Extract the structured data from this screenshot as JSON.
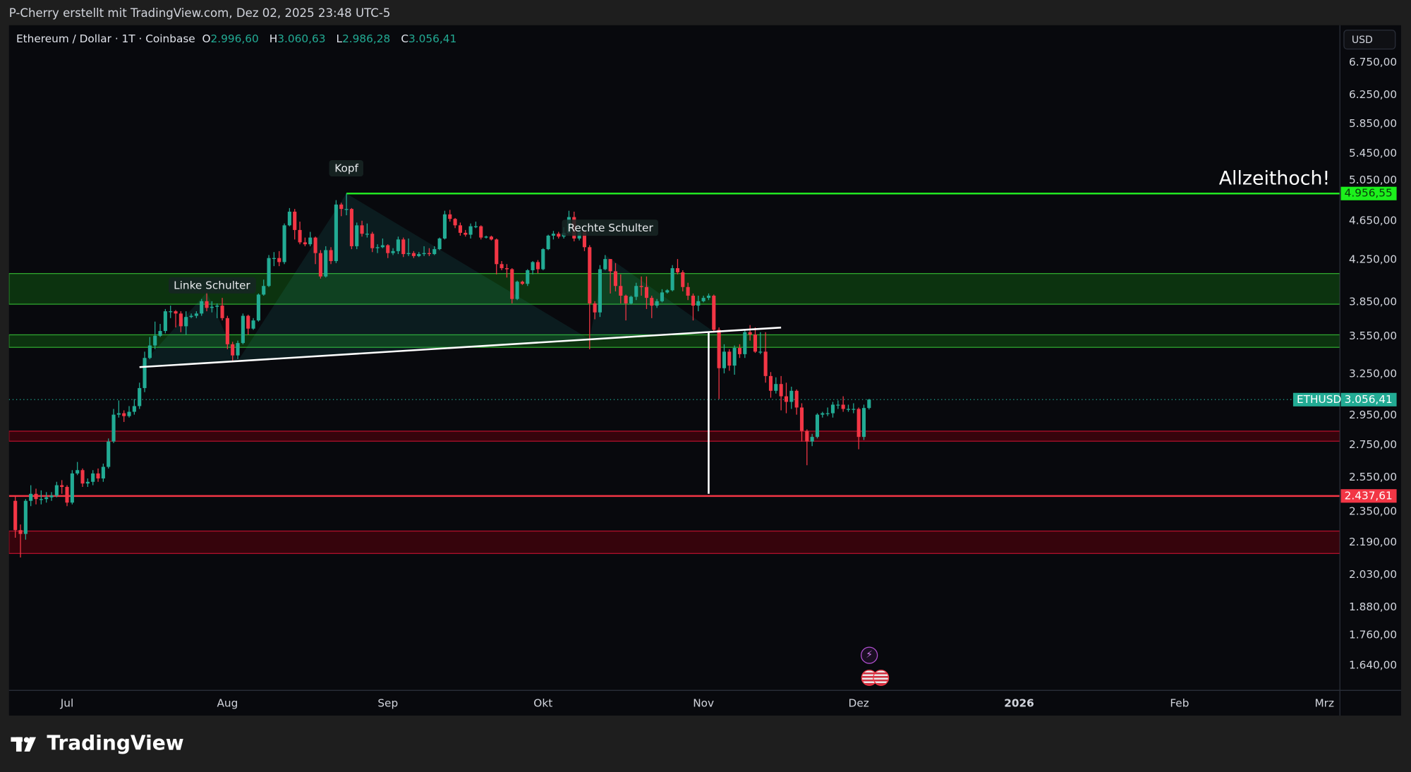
{
  "header": {
    "credit": "P-Cherry erstellt mit TradingView.com, Dez 02, 2025 23:48 UTC-5"
  },
  "legend": {
    "symbol": "Ethereum / Dollar · 1T · Coinbase",
    "o_label": "O",
    "o": "2.996,60",
    "h_label": "H",
    "h": "3.060,63",
    "l_label": "L",
    "l": "2.986,28",
    "c_label": "C",
    "c": "3.056,41"
  },
  "price_axis": {
    "currency_button": "USD"
  },
  "brand": {
    "name": "TradingView"
  },
  "colors": {
    "up": "#22ab94",
    "down": "#f23645",
    "ath_line": "#22e622",
    "support_line": "#f23645",
    "green_zone": "#1f8a1f",
    "red_zone": "#b2102c",
    "background": "#08090d"
  },
  "chart_data": {
    "type": "candlestick",
    "scale": "log",
    "grid": false,
    "ylim": [
      1560,
      7100
    ],
    "y_ticks": [
      {
        "value": 6750,
        "label": "6.750,00"
      },
      {
        "value": 6250,
        "label": "6.250,00"
      },
      {
        "value": 5850,
        "label": "5.850,00"
      },
      {
        "value": 5450,
        "label": "5.450,00"
      },
      {
        "value": 5050,
        "label": "5.050,00"
      },
      {
        "value": 4650,
        "label": "4.650,00"
      },
      {
        "value": 4250,
        "label": "4.250,00"
      },
      {
        "value": 3850,
        "label": "3.850,00"
      },
      {
        "value": 3550,
        "label": "3.550,00"
      },
      {
        "value": 3250,
        "label": "3.250,00"
      },
      {
        "value": 2950,
        "label": "2.950,00"
      },
      {
        "value": 2750,
        "label": "2.750,00"
      },
      {
        "value": 2550,
        "label": "2.550,00"
      },
      {
        "value": 2350,
        "label": "2.350,00"
      },
      {
        "value": 2190,
        "label": "2.190,00"
      },
      {
        "value": 2030,
        "label": "2.030,00"
      },
      {
        "value": 1880,
        "label": "1.880,00"
      },
      {
        "value": 1760,
        "label": "1.760,00"
      },
      {
        "value": 1640,
        "label": "1.640,00"
      }
    ],
    "x_ticks": [
      {
        "date": "2025-07-01",
        "label": "Jul"
      },
      {
        "date": "2025-08-01",
        "label": "Aug"
      },
      {
        "date": "2025-09-01",
        "label": "Sep"
      },
      {
        "date": "2025-10-01",
        "label": "Okt"
      },
      {
        "date": "2025-11-01",
        "label": "Nov"
      },
      {
        "date": "2025-12-01",
        "label": "Dez"
      },
      {
        "date": "2026-01-01",
        "label": "2026",
        "bold": true
      },
      {
        "date": "2026-02-01",
        "label": "Feb"
      },
      {
        "date": "2026-03-01",
        "label": "Mrz"
      }
    ],
    "last_price": {
      "value": 3056.41,
      "label": "3.056,41",
      "symbol": "ETHUSD"
    },
    "levels": [
      {
        "value": 4956.55,
        "label": "4.956,55",
        "color": "#22e622",
        "from_date": "2025-08-24",
        "text": "Allzeithoch!"
      },
      {
        "value": 2437.61,
        "label": "2.437,61",
        "color": "#f23645"
      }
    ],
    "zones": [
      {
        "low": 3823,
        "high": 4108,
        "kind": "green"
      },
      {
        "low": 3455,
        "high": 3558,
        "kind": "green"
      },
      {
        "low": 2772,
        "high": 2838,
        "kind": "red"
      },
      {
        "low": 2130,
        "high": 2245,
        "kind": "red"
      }
    ],
    "pattern_labels": [
      {
        "text": "Linke Schulter",
        "date": "2025-07-29",
        "price": 4000
      },
      {
        "text": "Kopf",
        "date": "2025-08-24",
        "price": 5260
      },
      {
        "text": "Rechte Schulter",
        "date": "2025-10-14",
        "price": 4570
      }
    ],
    "candles": {
      "start_date": "2025-06-21",
      "columns": [
        "open",
        "high",
        "low",
        "close"
      ],
      "ohlc": [
        [
          2410,
          2440,
          2210,
          2250
        ],
        [
          2250,
          2280,
          2110,
          2230
        ],
        [
          2230,
          2420,
          2200,
          2410
        ],
        [
          2410,
          2500,
          2380,
          2450
        ],
        [
          2450,
          2480,
          2390,
          2420
        ],
        [
          2420,
          2470,
          2390,
          2420
        ],
        [
          2420,
          2460,
          2400,
          2430
        ],
        [
          2430,
          2460,
          2410,
          2440
        ],
        [
          2440,
          2520,
          2430,
          2500
        ],
        [
          2500,
          2530,
          2450,
          2490
        ],
        [
          2490,
          2500,
          2380,
          2400
        ],
        [
          2400,
          2590,
          2390,
          2570
        ],
        [
          2570,
          2640,
          2560,
          2590
        ],
        [
          2590,
          2600,
          2490,
          2510
        ],
        [
          2510,
          2540,
          2490,
          2520
        ],
        [
          2520,
          2590,
          2500,
          2570
        ],
        [
          2570,
          2600,
          2520,
          2540
        ],
        [
          2540,
          2630,
          2520,
          2610
        ],
        [
          2610,
          2790,
          2600,
          2770
        ],
        [
          2770,
          2990,
          2760,
          2950
        ],
        [
          2950,
          3050,
          2930,
          2960
        ],
        [
          2960,
          2980,
          2900,
          2940
        ],
        [
          2940,
          3010,
          2930,
          2970
        ],
        [
          2970,
          3060,
          2950,
          3010
        ],
        [
          3010,
          3180,
          2990,
          3140
        ],
        [
          3140,
          3420,
          3110,
          3370
        ],
        [
          3370,
          3540,
          3360,
          3470
        ],
        [
          3470,
          3670,
          3440,
          3550
        ],
        [
          3550,
          3650,
          3540,
          3590
        ],
        [
          3590,
          3780,
          3570,
          3760
        ],
        [
          3760,
          3810,
          3700,
          3760
        ],
        [
          3760,
          3770,
          3620,
          3740
        ],
        [
          3740,
          3760,
          3580,
          3630
        ],
        [
          3630,
          3760,
          3560,
          3710
        ],
        [
          3710,
          3740,
          3700,
          3720
        ],
        [
          3720,
          3760,
          3700,
          3740
        ],
        [
          3740,
          3870,
          3720,
          3850
        ],
        [
          3850,
          3930,
          3760,
          3790
        ],
        [
          3790,
          3850,
          3750,
          3800
        ],
        [
          3800,
          3830,
          3700,
          3810
        ],
        [
          3810,
          3880,
          3680,
          3700
        ],
        [
          3700,
          3720,
          3440,
          3480
        ],
        [
          3480,
          3500,
          3350,
          3390
        ],
        [
          3390,
          3510,
          3360,
          3490
        ],
        [
          3490,
          3740,
          3480,
          3720
        ],
        [
          3720,
          3730,
          3560,
          3610
        ],
        [
          3610,
          3700,
          3600,
          3680
        ],
        [
          3680,
          3920,
          3670,
          3910
        ],
        [
          3910,
          4050,
          3900,
          3990
        ],
        [
          3990,
          4290,
          3980,
          4260
        ],
        [
          4260,
          4320,
          4180,
          4260
        ],
        [
          4260,
          4330,
          4180,
          4220
        ],
        [
          4220,
          4620,
          4200,
          4600
        ],
        [
          4600,
          4790,
          4590,
          4750
        ],
        [
          4750,
          4780,
          4450,
          4550
        ],
        [
          4550,
          4640,
          4400,
          4420
        ],
        [
          4420,
          4470,
          4380,
          4400
        ],
        [
          4400,
          4530,
          4380,
          4470
        ],
        [
          4470,
          4480,
          4200,
          4310
        ],
        [
          4310,
          4340,
          4060,
          4080
        ],
        [
          4080,
          4380,
          4070,
          4340
        ],
        [
          4340,
          4370,
          4200,
          4230
        ],
        [
          4230,
          4880,
          4210,
          4830
        ],
        [
          4830,
          4850,
          4700,
          4780
        ],
        [
          4780,
          4956.55,
          4710,
          4780
        ],
        [
          4780,
          4790,
          4350,
          4380
        ],
        [
          4380,
          4630,
          4350,
          4600
        ],
        [
          4600,
          4650,
          4480,
          4510
        ],
        [
          4510,
          4620,
          4470,
          4510
        ],
        [
          4510,
          4530,
          4320,
          4360
        ],
        [
          4360,
          4400,
          4310,
          4370
        ],
        [
          4370,
          4460,
          4360,
          4390
        ],
        [
          4390,
          4400,
          4260,
          4310
        ],
        [
          4310,
          4360,
          4290,
          4330
        ],
        [
          4330,
          4480,
          4300,
          4450
        ],
        [
          4450,
          4470,
          4270,
          4300
        ],
        [
          4300,
          4460,
          4280,
          4310
        ],
        [
          4310,
          4330,
          4260,
          4280
        ],
        [
          4280,
          4320,
          4270,
          4300
        ],
        [
          4300,
          4380,
          4280,
          4310
        ],
        [
          4310,
          4360,
          4280,
          4300
        ],
        [
          4300,
          4380,
          4290,
          4350
        ],
        [
          4350,
          4470,
          4340,
          4460
        ],
        [
          4460,
          4760,
          4450,
          4720
        ],
        [
          4720,
          4770,
          4640,
          4670
        ],
        [
          4670,
          4680,
          4570,
          4600
        ],
        [
          4600,
          4630,
          4490,
          4520
        ],
        [
          4520,
          4550,
          4480,
          4500
        ],
        [
          4500,
          4620,
          4460,
          4590
        ],
        [
          4590,
          4640,
          4570,
          4590
        ],
        [
          4590,
          4600,
          4450,
          4470
        ],
        [
          4470,
          4490,
          4460,
          4480
        ],
        [
          4480,
          4490,
          4440,
          4450
        ],
        [
          4450,
          4460,
          4100,
          4200
        ],
        [
          4200,
          4230,
          4140,
          4160
        ],
        [
          4160,
          4200,
          4070,
          4150
        ],
        [
          4150,
          4160,
          3830,
          3870
        ],
        [
          3870,
          4040,
          3860,
          4030
        ],
        [
          4030,
          4040,
          4000,
          4010
        ],
        [
          4010,
          4150,
          3990,
          4140
        ],
        [
          4140,
          4230,
          4100,
          4220
        ],
        [
          4220,
          4240,
          4110,
          4150
        ],
        [
          4150,
          4360,
          4140,
          4350
        ],
        [
          4350,
          4500,
          4340,
          4490
        ],
        [
          4490,
          4540,
          4450,
          4510
        ],
        [
          4510,
          4530,
          4460,
          4480
        ],
        [
          4480,
          4580,
          4460,
          4520
        ],
        [
          4520,
          4760,
          4510,
          4690
        ],
        [
          4690,
          4750,
          4430,
          4460
        ],
        [
          4460,
          4550,
          4440,
          4530
        ],
        [
          4530,
          4540,
          4330,
          4370
        ],
        [
          4370,
          4390,
          3440,
          3830
        ],
        [
          3830,
          3850,
          3690,
          3750
        ],
        [
          3750,
          4190,
          3710,
          4150
        ],
        [
          4150,
          4290,
          4140,
          4250
        ],
        [
          4250,
          4250,
          3920,
          4130
        ],
        [
          4130,
          4210,
          3940,
          3990
        ],
        [
          3990,
          4100,
          3830,
          3900
        ],
        [
          3900,
          3910,
          3680,
          3830
        ],
        [
          3830,
          3900,
          3820,
          3890
        ],
        [
          3890,
          4020,
          3860,
          3990
        ],
        [
          3990,
          4080,
          3900,
          3980
        ],
        [
          3980,
          4080,
          3780,
          3880
        ],
        [
          3880,
          3900,
          3700,
          3810
        ],
        [
          3810,
          3870,
          3790,
          3850
        ],
        [
          3850,
          3960,
          3840,
          3930
        ],
        [
          3930,
          3960,
          3920,
          3950
        ],
        [
          3950,
          4190,
          3940,
          4160
        ],
        [
          4160,
          4250,
          4100,
          4120
        ],
        [
          4120,
          4140,
          3940,
          3980
        ],
        [
          3980,
          4020,
          3860,
          3900
        ],
        [
          3900,
          3920,
          3680,
          3810
        ],
        [
          3810,
          3900,
          3760,
          3850
        ],
        [
          3850,
          3900,
          3840,
          3880
        ],
        [
          3880,
          3920,
          3860,
          3900
        ],
        [
          3900,
          3910,
          3580,
          3600
        ],
        [
          3600,
          3620,
          3060,
          3290
        ],
        [
          3290,
          3480,
          3250,
          3420
        ],
        [
          3420,
          3440,
          3270,
          3310
        ],
        [
          3310,
          3470,
          3240,
          3450
        ],
        [
          3450,
          3480,
          3370,
          3400
        ],
        [
          3400,
          3600,
          3370,
          3580
        ],
        [
          3580,
          3640,
          3510,
          3560
        ],
        [
          3560,
          3620,
          3410,
          3420
        ],
        [
          3420,
          3580,
          3400,
          3420
        ],
        [
          3420,
          3580,
          3180,
          3230
        ],
        [
          3230,
          3260,
          3070,
          3120
        ],
        [
          3120,
          3220,
          3100,
          3170
        ],
        [
          3170,
          3230,
          2980,
          3080
        ],
        [
          3080,
          3180,
          2960,
          3040
        ],
        [
          3040,
          3150,
          2990,
          3120
        ],
        [
          3120,
          3130,
          2950,
          3000
        ],
        [
          3000,
          3030,
          2770,
          2840
        ],
        [
          2840,
          2850,
          2620,
          2770
        ],
        [
          2770,
          2820,
          2740,
          2800
        ],
        [
          2800,
          2960,
          2790,
          2950
        ],
        [
          2950,
          2970,
          2930,
          2960
        ],
        [
          2960,
          3000,
          2940,
          2960
        ],
        [
          2960,
          3040,
          2930,
          3020
        ],
        [
          3020,
          3050,
          2990,
          3020
        ],
        [
          3020,
          3080,
          2970,
          2990
        ],
        [
          2990,
          3020,
          2970,
          2990
        ],
        [
          2990,
          3030,
          2960,
          2990
        ],
        [
          2990,
          3000,
          2720,
          2800
        ],
        [
          2800,
          3020,
          2780,
          2996.6
        ],
        [
          2996.6,
          3060.63,
          2986.28,
          3056.41
        ]
      ]
    }
  }
}
